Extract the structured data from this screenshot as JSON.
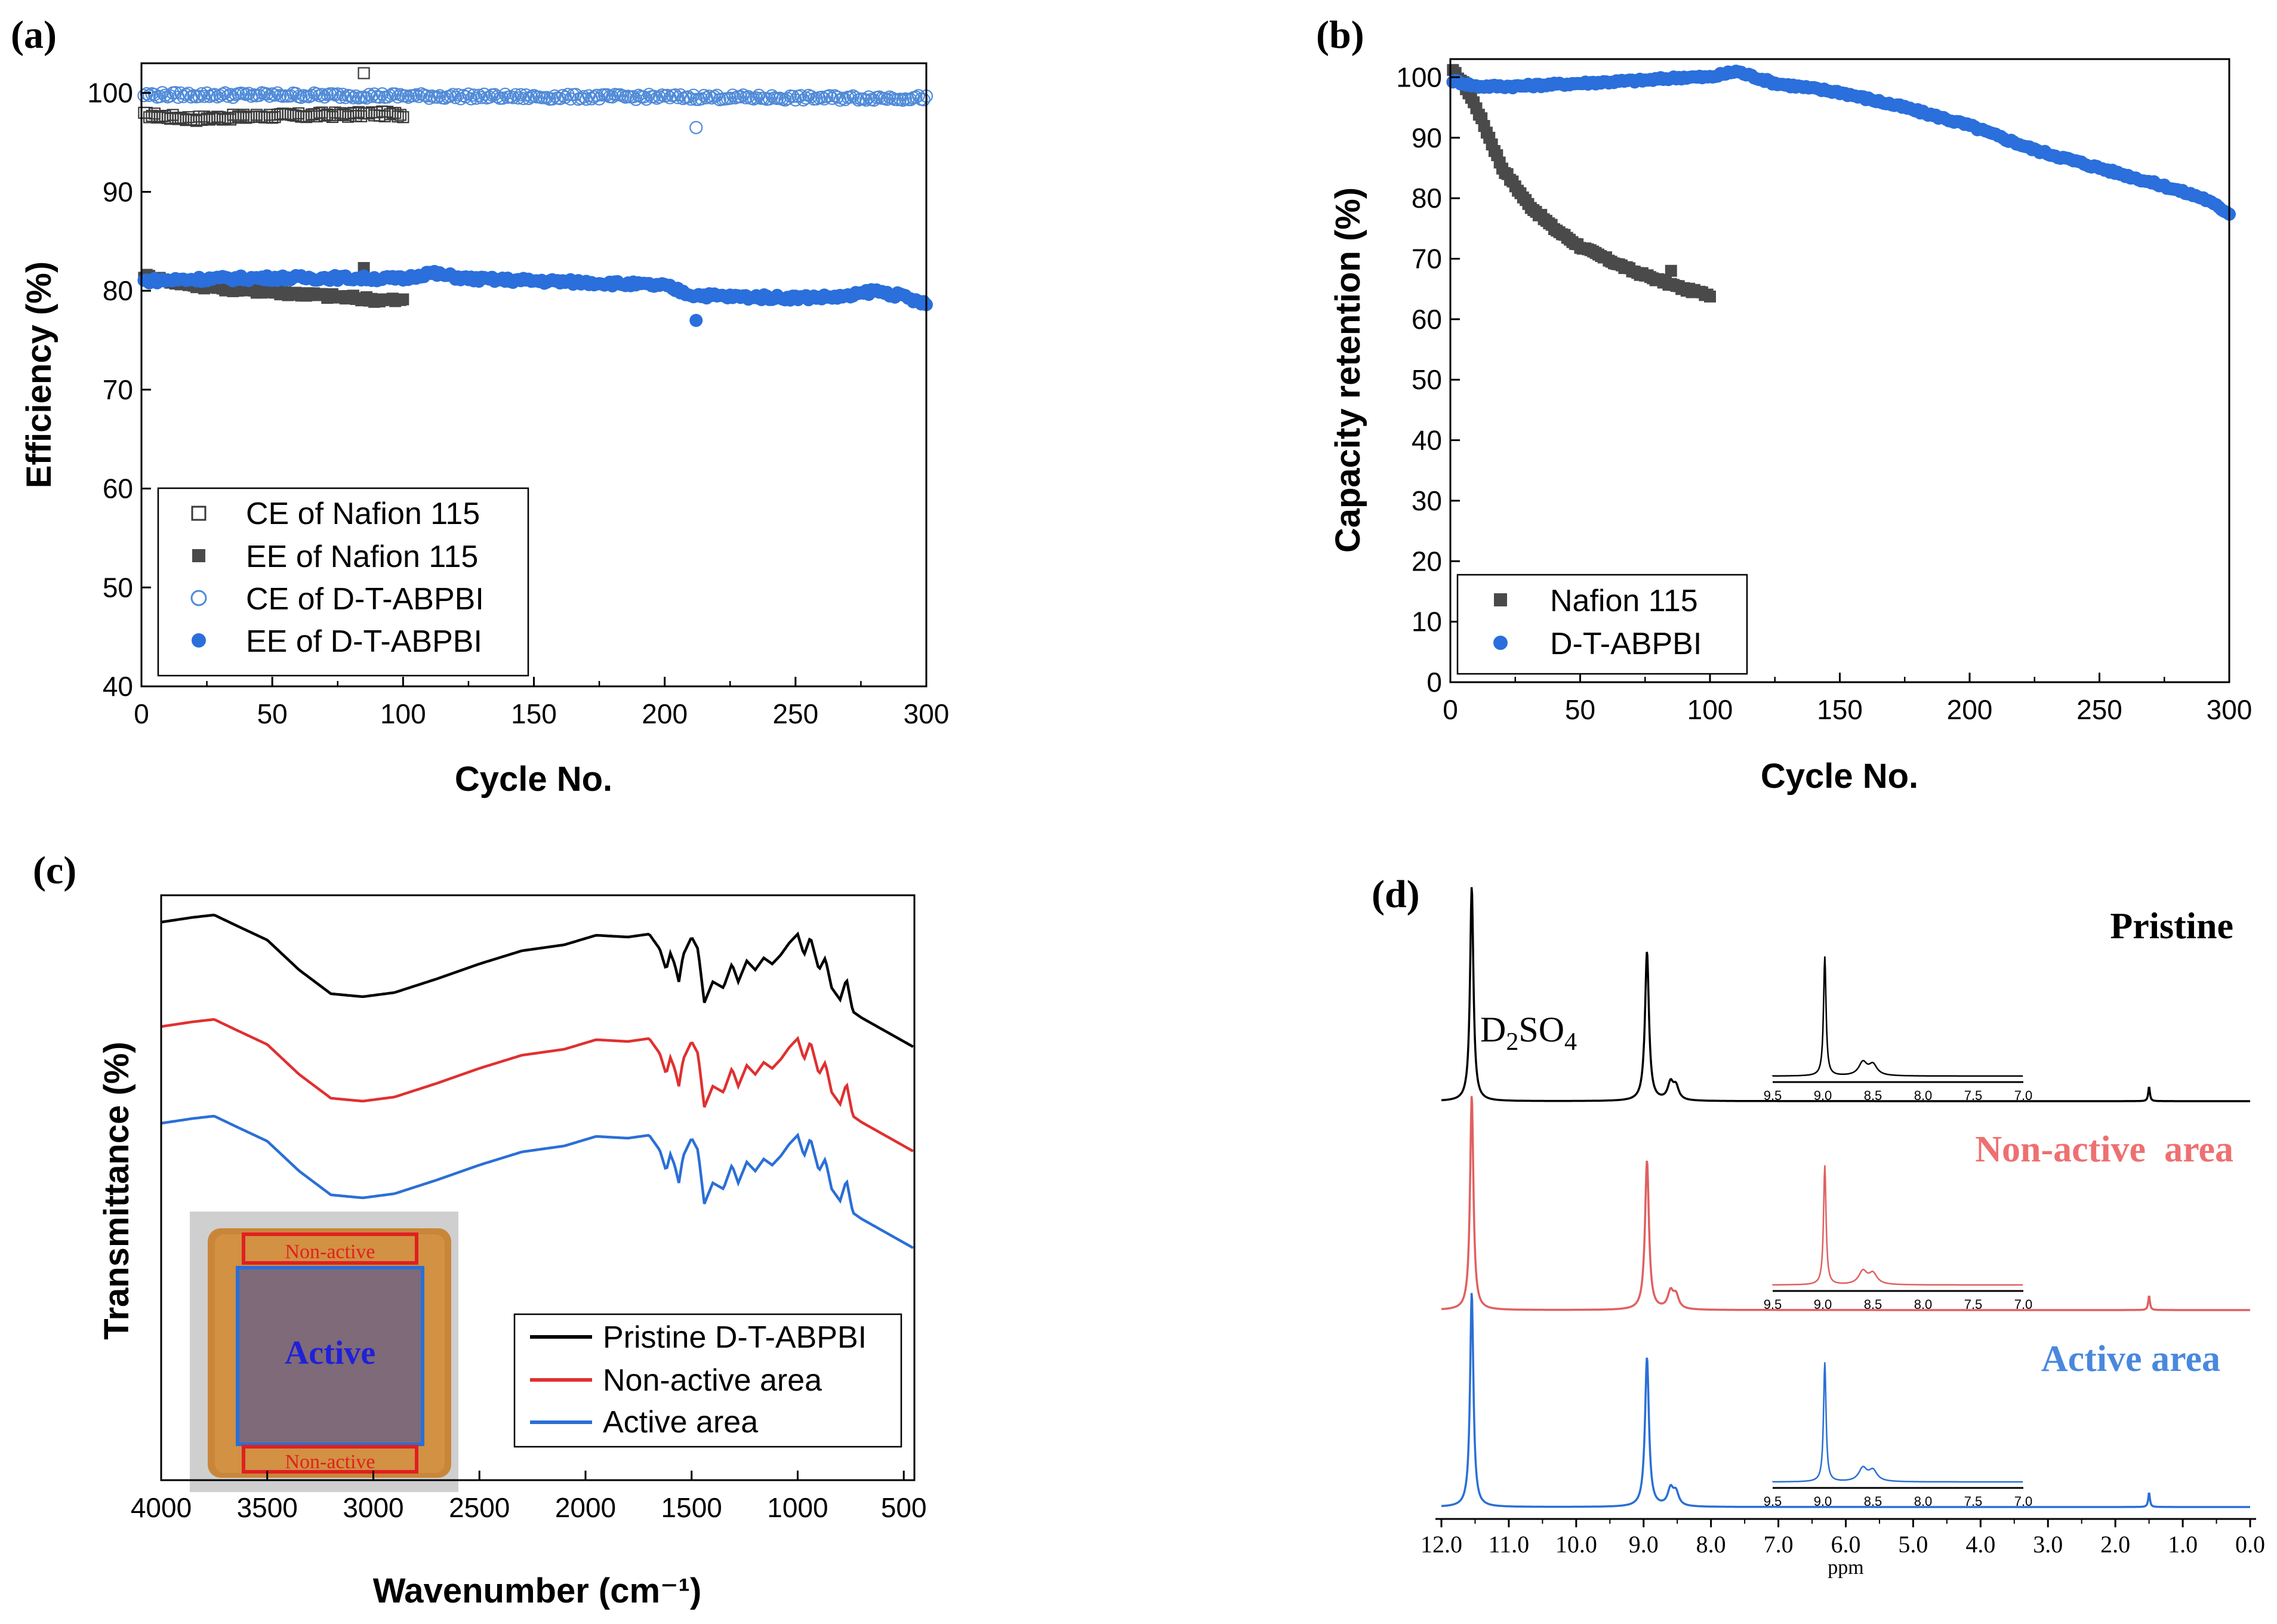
{
  "figure": {
    "panels": [
      {
        "id": "a",
        "label": "(a)"
      },
      {
        "id": "b",
        "label": "(b)"
      },
      {
        "id": "c",
        "label": "(c)"
      },
      {
        "id": "d",
        "label": "(d)"
      }
    ]
  },
  "chart_data": [
    {
      "id": "a",
      "type": "scatter",
      "xlabel": "Cycle No.",
      "ylabel": "Efficiency (%)",
      "xlim": [
        0,
        300
      ],
      "ylim": [
        40,
        103
      ],
      "xticks": [
        0,
        50,
        100,
        150,
        200,
        250,
        300
      ],
      "yticks": [
        40,
        50,
        60,
        70,
        80,
        90,
        100
      ],
      "legend_position": "bottom-left",
      "series": [
        {
          "name": "CE of Nafion 115",
          "marker": "open-square",
          "color": "#3a3a3a",
          "x_range": [
            1,
            100
          ],
          "x": [
            1,
            10,
            20,
            30,
            40,
            50,
            60,
            70,
            80,
            90,
            100
          ],
          "y": [
            97.8,
            97.6,
            97.4,
            97.5,
            97.6,
            97.7,
            97.7,
            97.8,
            97.8,
            97.9,
            97.8
          ],
          "outliers": [
            {
              "x": 85,
              "y": 102
            }
          ]
        },
        {
          "name": "EE of Nafion 115",
          "marker": "filled-square",
          "color": "#4a4a4a",
          "x_range": [
            1,
            100
          ],
          "x": [
            1,
            10,
            20,
            30,
            40,
            50,
            60,
            70,
            80,
            90,
            100
          ],
          "y": [
            81.5,
            81.0,
            80.6,
            80.3,
            80.1,
            79.9,
            79.7,
            79.5,
            79.3,
            79.1,
            79.0
          ],
          "outliers": [
            {
              "x": 85,
              "y": 82.3
            }
          ]
        },
        {
          "name": "CE of D-T-ABPBI",
          "marker": "open-circle",
          "color": "#4f8ad8",
          "x_range": [
            1,
            300
          ],
          "x": [
            1,
            50,
            100,
            150,
            200,
            250,
            300
          ],
          "y": [
            99.8,
            99.8,
            99.7,
            99.6,
            99.6,
            99.5,
            99.5
          ],
          "outliers": [
            {
              "x": 212,
              "y": 96.5
            }
          ]
        },
        {
          "name": "EE of D-T-ABPBI",
          "marker": "filled-circle",
          "color": "#2a6fdb",
          "x_range": [
            1,
            300
          ],
          "x": [
            1,
            25,
            50,
            75,
            100,
            110,
            125,
            150,
            175,
            200,
            210,
            225,
            250,
            270,
            280,
            290,
            300
          ],
          "y": [
            81.0,
            81.2,
            81.3,
            81.3,
            81.2,
            81.8,
            81.2,
            81.0,
            80.8,
            80.5,
            79.6,
            79.4,
            79.3,
            79.4,
            80.0,
            79.5,
            78.6
          ],
          "outliers": [
            {
              "x": 212,
              "y": 77.0
            }
          ]
        }
      ]
    },
    {
      "id": "b",
      "type": "scatter",
      "xlabel": "Cycle No.",
      "ylabel": "Capacity retention (%)",
      "xlim": [
        0,
        300
      ],
      "ylim": [
        0,
        103
      ],
      "xticks": [
        0,
        50,
        100,
        150,
        200,
        250,
        300
      ],
      "yticks": [
        0,
        10,
        20,
        30,
        40,
        50,
        60,
        70,
        80,
        90,
        100
      ],
      "legend_position": "bottom-left",
      "series": [
        {
          "name": "Nafion 115",
          "marker": "filled-square",
          "color": "#4a4a4a",
          "x": [
            0,
            5,
            10,
            15,
            20,
            30,
            40,
            50,
            60,
            70,
            80,
            90,
            100
          ],
          "y": [
            101.5,
            99,
            95,
            90,
            85,
            79,
            75,
            72,
            70,
            68,
            66.5,
            65,
            64
          ],
          "outliers": [
            {
              "x": 85,
              "y": 68
            }
          ]
        },
        {
          "name": "D-T-ABPBI",
          "marker": "filled-circle",
          "color": "#2a6fdb",
          "x": [
            0,
            10,
            25,
            50,
            75,
            90,
            100,
            110,
            125,
            150,
            175,
            200,
            225,
            250,
            275,
            290,
            300
          ],
          "y": [
            99.5,
            98.5,
            98.5,
            99,
            99.5,
            100,
            100,
            101,
            99,
            97.5,
            95,
            92,
            88,
            85,
            82,
            80,
            77.5
          ]
        }
      ]
    },
    {
      "id": "c",
      "type": "line",
      "xlabel": "Wavenumber (cm⁻¹)",
      "ylabel": "Transmittance (%)",
      "xlim": [
        4000,
        450
      ],
      "xticks": [
        4000,
        3500,
        3000,
        2500,
        2000,
        1500,
        1000,
        500
      ],
      "legend_position": "bottom-right",
      "series": [
        {
          "name": "Pristine D-T-ABPBI",
          "color": "#000000",
          "offset": 2.0
        },
        {
          "name": "Non-active area",
          "color": "#e03030",
          "offset": 1.0
        },
        {
          "name": "Active area",
          "color": "#2a6fd6",
          "offset": 0.0
        }
      ],
      "inset_photo": {
        "label_active": "Active",
        "label_nonactive": "Non-active"
      }
    },
    {
      "id": "d",
      "type": "line",
      "xlabel": "ppm",
      "xlim": [
        12.0,
        0.0
      ],
      "xticks": [
        "12.0",
        "11.0",
        "10.0",
        "9.0",
        "8.0",
        "7.0",
        "6.0",
        "5.0",
        "4.0",
        "3.0",
        "2.0",
        "1.0",
        "0.0"
      ],
      "annotations": [
        "D2SO4"
      ],
      "series": [
        {
          "name": "Pristine",
          "color": "#000000"
        },
        {
          "name": "Non-active  area",
          "color": "#e06060"
        },
        {
          "name": "Active area",
          "color": "#2a6fd6"
        }
      ],
      "peaks_ppm": [
        11.55,
        8.95,
        8.6,
        8.55,
        1.5
      ],
      "inset": {
        "xlim": [
          9.5,
          7.0
        ],
        "xticks": [
          "9.5",
          "9.0",
          "8.5",
          "8.0",
          "7.5",
          "7.0"
        ]
      }
    }
  ]
}
